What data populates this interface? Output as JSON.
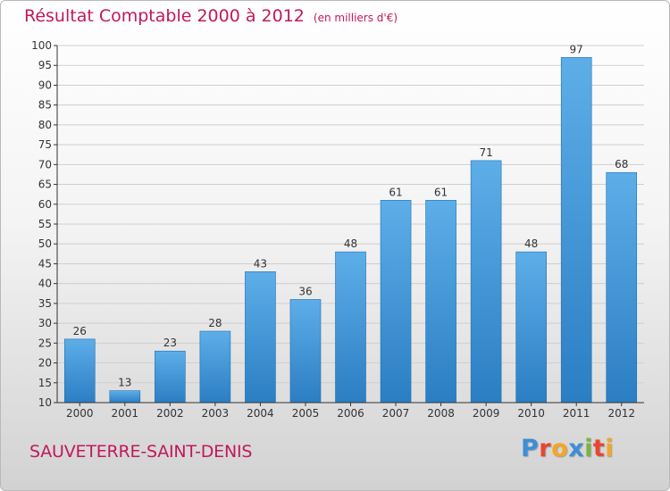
{
  "chart_data": {
    "type": "bar",
    "title": "Résultat Comptable 2000 à 2012",
    "subtitle": "(en milliers d'€)",
    "categories": [
      "2000",
      "2001",
      "2002",
      "2003",
      "2004",
      "2005",
      "2006",
      "2007",
      "2008",
      "2009",
      "2010",
      "2011",
      "2012"
    ],
    "values": [
      26,
      13,
      23,
      28,
      43,
      36,
      48,
      61,
      61,
      71,
      48,
      97,
      68
    ],
    "data_labels": [
      "26",
      "13",
      "23",
      "28",
      "43",
      "36",
      "48",
      "61",
      "61",
      "71",
      "48",
      "97",
      "68"
    ],
    "ylim": [
      10,
      100
    ],
    "yticks": [
      "10",
      "15",
      "20",
      "25",
      "30",
      "35",
      "40",
      "45",
      "50",
      "55",
      "60",
      "65",
      "70",
      "75",
      "80",
      "85",
      "90",
      "95",
      "100"
    ],
    "grid": "horizontal",
    "legend": "none",
    "bar_color_light": "#5daee8",
    "bar_color_dark": "#2b7ec3",
    "xlabel": "",
    "ylabel": ""
  },
  "commune": "SAUVETERRE-SAINT-DENIS",
  "brand": {
    "logo_text": "Proxiti"
  },
  "colors": {
    "title": "#c2185b",
    "grid": "#cfcfcf",
    "axis": "#333333"
  }
}
